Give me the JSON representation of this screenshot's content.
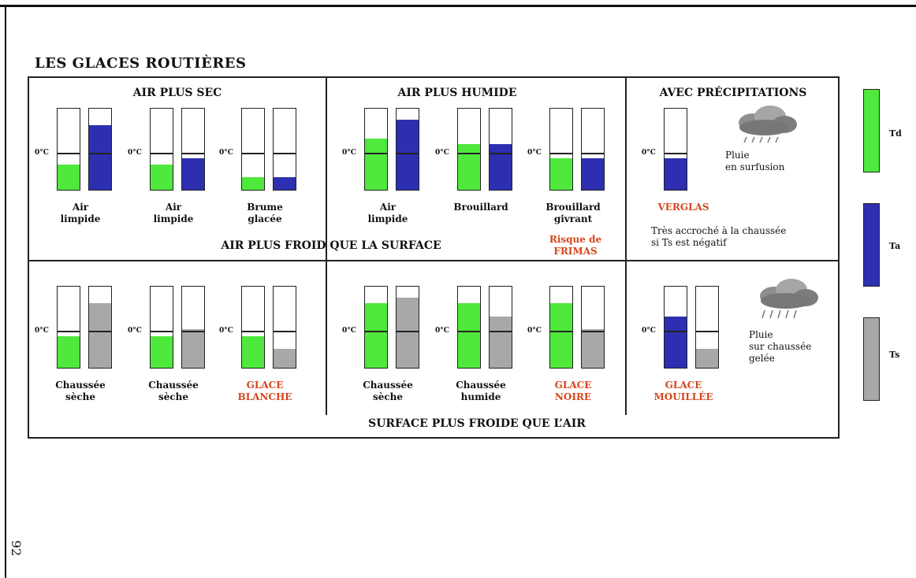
{
  "page_number": "92",
  "title": "LES GLACES ROUTIÈRES",
  "zero_label": "0°C",
  "colors": {
    "td": "#4fe83c",
    "ta": "#2d2fb0",
    "ts": "#a8a8a8",
    "highlight": "#d6461c"
  },
  "sections": {
    "air_sec": "AIR PLUS SEC",
    "air_humide": "AIR PLUS HUMIDE",
    "precip": "AVEC PRÉCIPITATIONS",
    "air_froid": "AIR PLUS FROID QUE LA SURFACE",
    "surface_froide": "SURFACE PLUS FROIDE QUE L’AIR"
  },
  "top_row": [
    {
      "label": "Air\nlimpide",
      "td": 0.3,
      "ta": 0.78
    },
    {
      "label": "Air\nlimpide",
      "td": 0.3,
      "ta": 0.38
    },
    {
      "label": "Brume\nglacée",
      "td": 0.15,
      "ta": 0.15
    },
    {
      "label": "Air\nlimpide",
      "td": 0.62,
      "ta": 0.85
    },
    {
      "label": "Brouillard",
      "td": 0.55,
      "ta": 0.55
    },
    {
      "label": "Brouillard\ngivrant",
      "td": 0.38,
      "ta": 0.38
    },
    {
      "label": "VERGLAS",
      "ta": 0.38
    }
  ],
  "bottom_row": [
    {
      "label": "Chaussée\nsèche",
      "td": 0.38,
      "ts": 0.78
    },
    {
      "label": "Chaussée\nsèche",
      "td": 0.38,
      "ts": 0.47
    },
    {
      "label": "GLACE\nBLANCHE",
      "td": 0.38,
      "ts": 0.23
    },
    {
      "label": "Chaussée\nsèche",
      "td": 0.78,
      "ts": 0.85
    },
    {
      "label": "Chaussée\nhumide",
      "td": 0.78,
      "ts": 0.62
    },
    {
      "label": "GLACE\nNOIRE",
      "td": 0.78,
      "ts": 0.47
    },
    {
      "label": "GLACE\nMOUILLÉE",
      "ta": 0.62,
      "ts": 0.23
    }
  ],
  "risk_label": "Risque de\nFRIMAS",
  "notes": {
    "pluie_surfusion": "Pluie\nen surfusion",
    "verglas_desc": "Très accroché à la chaussée\nsi Ts est négatif",
    "pluie_gelee": "Pluie\nsur chaussée\ngelée"
  },
  "legend": [
    {
      "label": "Td",
      "color": "#4fe83c"
    },
    {
      "label": "Ta",
      "color": "#2d2fb0"
    },
    {
      "label": "Ts",
      "color": "#a8a8a8"
    }
  ]
}
